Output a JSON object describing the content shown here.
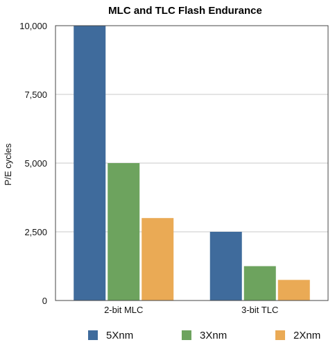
{
  "chart_data": {
    "type": "bar",
    "title": "MLC and TLC Flash Endurance",
    "xlabel": "",
    "ylabel": "P/E cycles",
    "categories": [
      "2-bit MLC",
      "3-bit TLC"
    ],
    "series": [
      {
        "name": "5Xnm",
        "values": [
          10000,
          2500
        ],
        "color": "#3f6b9c"
      },
      {
        "name": "3Xnm",
        "values": [
          5000,
          1250
        ],
        "color": "#6da35e"
      },
      {
        "name": "2Xnm",
        "values": [
          3000,
          750
        ],
        "color": "#eaaa55"
      }
    ],
    "ylim": [
      0,
      10000
    ],
    "yticks": [
      0,
      2500,
      5000,
      7500,
      10000
    ],
    "ytick_labels": [
      "0",
      "2,500",
      "5,000",
      "7,500",
      "10,000"
    ],
    "grid": true,
    "legend_position": "bottom"
  }
}
